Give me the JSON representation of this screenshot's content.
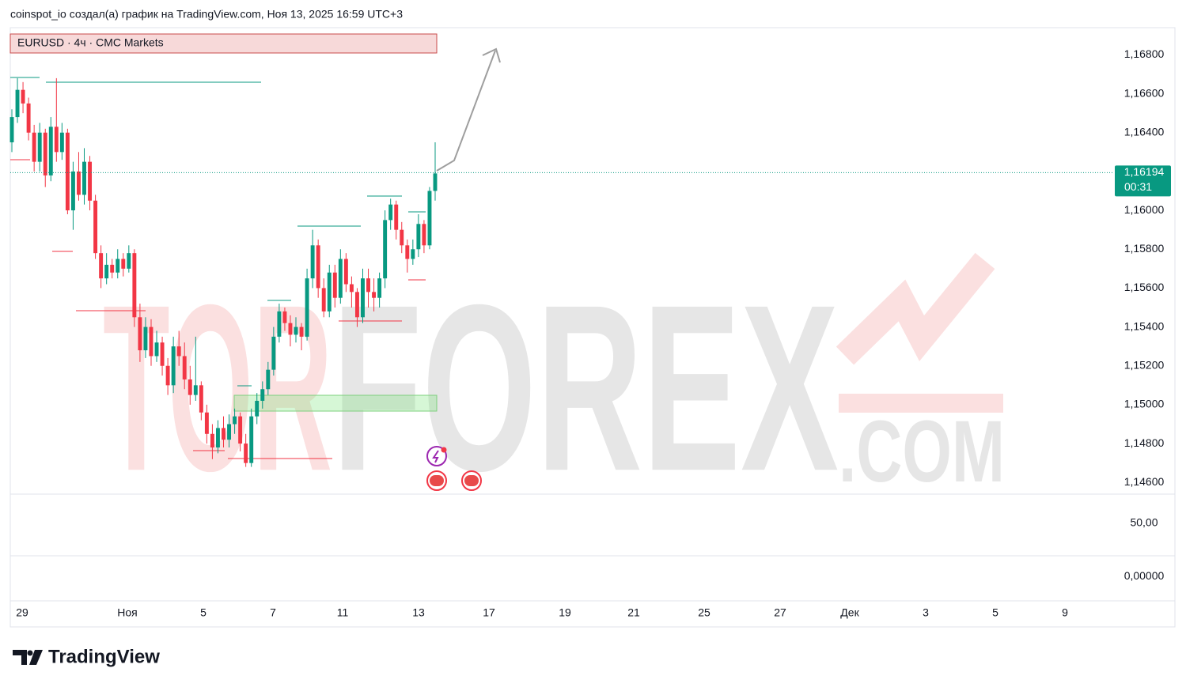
{
  "header": "coinspot_io создал(а) график на TradingView.com, Ноя 13, 2025 16:59 UTC+3",
  "footer": {
    "brand": "TradingView"
  },
  "watermark": {
    "part1": "TOR",
    "part2": "FOREX",
    "part3": ".COM"
  },
  "chart_data": {
    "type": "candlestick",
    "title": "EURUSD · 4ч · CMC Markets",
    "up_color": "#089981",
    "down_color": "#f23645",
    "ylim": [
      1.1454,
      1.1694
    ],
    "yticks": [
      {
        "value": 1.168,
        "label": "1,16800"
      },
      {
        "value": 1.166,
        "label": "1,16600"
      },
      {
        "value": 1.164,
        "label": "1,16400"
      },
      {
        "value": 1.16,
        "label": "1,16000"
      },
      {
        "value": 1.158,
        "label": "1,15800"
      },
      {
        "value": 1.156,
        "label": "1,15600"
      },
      {
        "value": 1.154,
        "label": "1,15400"
      },
      {
        "value": 1.152,
        "label": "1,15200"
      },
      {
        "value": 1.15,
        "label": "1,15000"
      },
      {
        "value": 1.148,
        "label": "1,14800"
      },
      {
        "value": 1.146,
        "label": "1,14600"
      }
    ],
    "last_price": {
      "value": 1.16194,
      "label": "1,16194",
      "countdown": "00:31"
    },
    "x_labels": [
      "29",
      "Ноя",
      "5",
      "7",
      "11",
      "13",
      "17",
      "19",
      "21",
      "25",
      "27",
      "Дек",
      "3",
      "5",
      "9"
    ],
    "indicator": {
      "ylim": [
        -23,
        77.6
      ],
      "yticks": [
        {
          "value": 50,
          "label": "50,00"
        },
        {
          "value": 0,
          "label": "0,00000"
        }
      ]
    },
    "ohlc": [
      [
        1.1635,
        1.1652,
        1.163,
        1.1648
      ],
      [
        1.1648,
        1.1668,
        1.1645,
        1.1662
      ],
      [
        1.1662,
        1.1666,
        1.165,
        1.1655
      ],
      [
        1.1655,
        1.1658,
        1.1636,
        1.164
      ],
      [
        1.164,
        1.1644,
        1.162,
        1.1625
      ],
      [
        1.1625,
        1.1645,
        1.162,
        1.164
      ],
      [
        1.164,
        1.1642,
        1.1612,
        1.1618
      ],
      [
        1.1618,
        1.1648,
        1.1615,
        1.1643
      ],
      [
        1.1643,
        1.1668,
        1.1625,
        1.163
      ],
      [
        1.163,
        1.1645,
        1.1626,
        1.164
      ],
      [
        1.164,
        1.1642,
        1.1598,
        1.16
      ],
      [
        1.16,
        1.1625,
        1.159,
        1.162
      ],
      [
        1.162,
        1.163,
        1.1605,
        1.1608
      ],
      [
        1.1608,
        1.1632,
        1.1603,
        1.1625
      ],
      [
        1.1625,
        1.1628,
        1.16,
        1.1605
      ],
      [
        1.1605,
        1.1608,
        1.1575,
        1.1578
      ],
      [
        1.1578,
        1.1582,
        1.156,
        1.1565
      ],
      [
        1.1565,
        1.1578,
        1.1562,
        1.1572
      ],
      [
        1.1572,
        1.1575,
        1.1565,
        1.1568
      ],
      [
        1.1568,
        1.158,
        1.1565,
        1.1575
      ],
      [
        1.1575,
        1.1578,
        1.1566,
        1.157
      ],
      [
        1.157,
        1.1582,
        1.1568,
        1.1578
      ],
      [
        1.1578,
        1.158,
        1.154,
        1.1545
      ],
      [
        1.1545,
        1.1552,
        1.1522,
        1.1528
      ],
      [
        1.1528,
        1.1545,
        1.1524,
        1.154
      ],
      [
        1.154,
        1.1544,
        1.152,
        1.1525
      ],
      [
        1.1525,
        1.1538,
        1.1522,
        1.1532
      ],
      [
        1.1532,
        1.1535,
        1.1515,
        1.152
      ],
      [
        1.152,
        1.1524,
        1.1505,
        1.151
      ],
      [
        1.151,
        1.1535,
        1.1506,
        1.153
      ],
      [
        1.153,
        1.1538,
        1.152,
        1.1525
      ],
      [
        1.1525,
        1.1532,
        1.1508,
        1.1513
      ],
      [
        1.1513,
        1.152,
        1.15,
        1.1505
      ],
      [
        1.1505,
        1.1535,
        1.1502,
        1.151
      ],
      [
        1.151,
        1.1512,
        1.1492,
        1.1496
      ],
      [
        1.1496,
        1.15,
        1.148,
        1.1485
      ],
      [
        1.1485,
        1.149,
        1.1472,
        1.1478
      ],
      [
        1.1478,
        1.1492,
        1.1475,
        1.1488
      ],
      [
        1.1488,
        1.1494,
        1.1478,
        1.1482
      ],
      [
        1.1482,
        1.1495,
        1.1478,
        1.149
      ],
      [
        1.149,
        1.1498,
        1.1485,
        1.1494
      ],
      [
        1.1494,
        1.1496,
        1.1476,
        1.148
      ],
      [
        1.148,
        1.1485,
        1.1468,
        1.147
      ],
      [
        1.147,
        1.1498,
        1.1468,
        1.1494
      ],
      [
        1.1494,
        1.1506,
        1.149,
        1.1502
      ],
      [
        1.1502,
        1.1512,
        1.1498,
        1.1508
      ],
      [
        1.1508,
        1.1522,
        1.1505,
        1.1518
      ],
      [
        1.1518,
        1.154,
        1.1515,
        1.1535
      ],
      [
        1.1535,
        1.1552,
        1.1532,
        1.1548
      ],
      [
        1.1548,
        1.155,
        1.1538,
        1.1542
      ],
      [
        1.1542,
        1.1546,
        1.153,
        1.1536
      ],
      [
        1.1536,
        1.1545,
        1.1532,
        1.154
      ],
      [
        1.154,
        1.1542,
        1.1528,
        1.1535
      ],
      [
        1.1535,
        1.157,
        1.1533,
        1.1565
      ],
      [
        1.1565,
        1.159,
        1.156,
        1.1582
      ],
      [
        1.1582,
        1.1585,
        1.1555,
        1.156
      ],
      [
        1.156,
        1.1565,
        1.1545,
        1.1548
      ],
      [
        1.1548,
        1.1572,
        1.1545,
        1.1568
      ],
      [
        1.1568,
        1.1572,
        1.155,
        1.1555
      ],
      [
        1.1555,
        1.158,
        1.1552,
        1.1575
      ],
      [
        1.1575,
        1.1578,
        1.1558,
        1.1562
      ],
      [
        1.1562,
        1.1566,
        1.155,
        1.1558
      ],
      [
        1.1558,
        1.156,
        1.154,
        1.1545
      ],
      [
        1.1545,
        1.157,
        1.1542,
        1.1565
      ],
      [
        1.1565,
        1.157,
        1.155,
        1.1558
      ],
      [
        1.1558,
        1.1565,
        1.1548,
        1.1555
      ],
      [
        1.1555,
        1.1568,
        1.155,
        1.1565
      ],
      [
        1.1565,
        1.16,
        1.156,
        1.1595
      ],
      [
        1.1595,
        1.1606,
        1.159,
        1.1603
      ],
      [
        1.1603,
        1.1605,
        1.1585,
        1.159
      ],
      [
        1.159,
        1.1594,
        1.1578,
        1.1582
      ],
      [
        1.1582,
        1.1585,
        1.1568,
        1.1575
      ],
      [
        1.1575,
        1.1585,
        1.1572,
        1.158
      ],
      [
        1.158,
        1.1598,
        1.1576,
        1.1593
      ],
      [
        1.1593,
        1.1595,
        1.1578,
        1.1582
      ],
      [
        1.1582,
        1.1612,
        1.158,
        1.161
      ],
      [
        1.161,
        1.1635,
        1.1605,
        1.1619
      ]
    ]
  }
}
